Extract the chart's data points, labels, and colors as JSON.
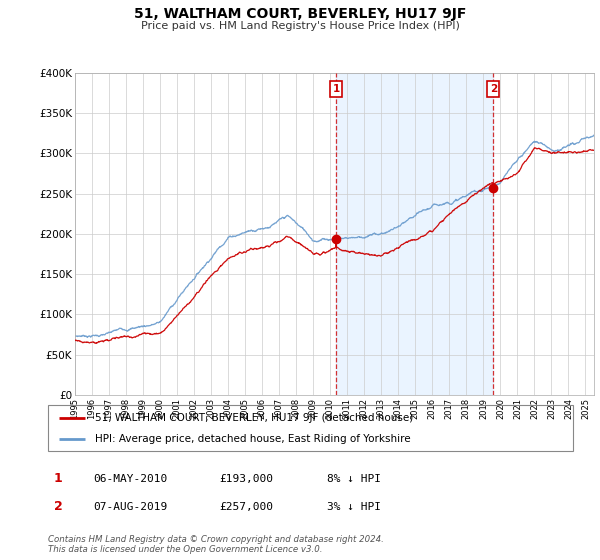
{
  "title": "51, WALTHAM COURT, BEVERLEY, HU17 9JF",
  "subtitle": "Price paid vs. HM Land Registry's House Price Index (HPI)",
  "ylim": [
    0,
    400000
  ],
  "yticks": [
    0,
    50000,
    100000,
    150000,
    200000,
    250000,
    300000,
    350000,
    400000
  ],
  "ytick_labels": [
    "£0",
    "£50K",
    "£100K",
    "£150K",
    "£200K",
    "£250K",
    "£300K",
    "£350K",
    "£400K"
  ],
  "xlim_start": 1995.0,
  "xlim_end": 2025.5,
  "sale1_date": 2010.35,
  "sale1_price": 193000,
  "sale1_label": "1",
  "sale1_text": "06-MAY-2010",
  "sale1_amount": "£193,000",
  "sale1_hpi": "8% ↓ HPI",
  "sale2_date": 2019.58,
  "sale2_price": 257000,
  "sale2_label": "2",
  "sale2_text": "07-AUG-2019",
  "sale2_amount": "£257,000",
  "sale2_hpi": "3% ↓ HPI",
  "legend_line1": "51, WALTHAM COURT, BEVERLEY, HU17 9JF (detached house)",
  "legend_line2": "HPI: Average price, detached house, East Riding of Yorkshire",
  "footer": "Contains HM Land Registry data © Crown copyright and database right 2024.\nThis data is licensed under the Open Government Licence v3.0.",
  "line_color_red": "#cc0000",
  "line_color_blue": "#6699cc",
  "shade_color": "#ddeeff",
  "marker_box_color": "#cc0000",
  "background_color": "#ffffff",
  "grid_color": "#cccccc"
}
